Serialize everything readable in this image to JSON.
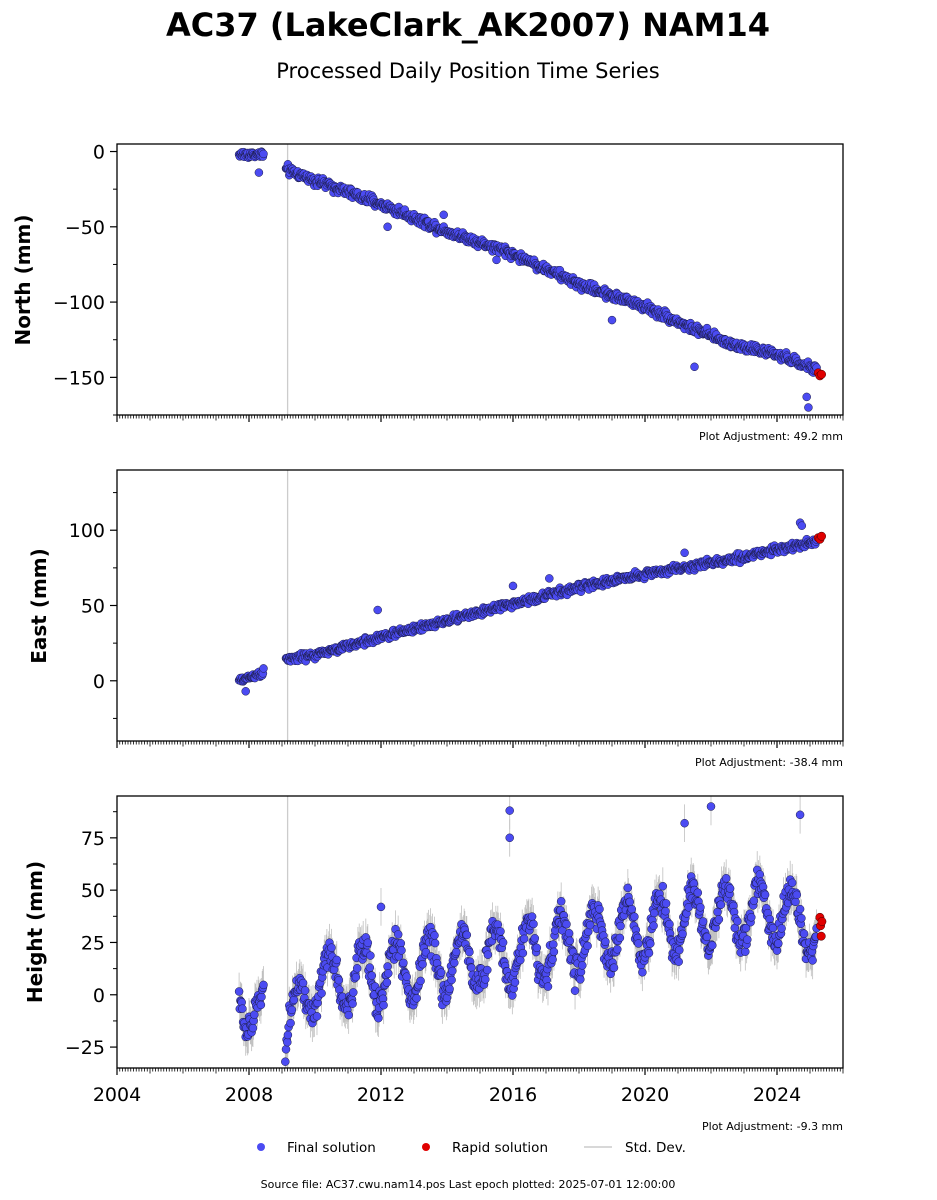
{
  "title": "AC37 (LakeClark_AK2007) NAM14",
  "subtitle": "Processed Daily Position Time Series",
  "legend": {
    "final": "Final solution",
    "rapid": "Rapid solution",
    "std": "Std. Dev."
  },
  "footer": "Source file: AC37.cwu.nam14.pos  Last epoch plotted: 2025-07-01 12:00:00",
  "colors": {
    "final": "#4b4bf2",
    "rapid": "#e00000",
    "std": "#bfbfbf",
    "event_line": "#cccccc"
  },
  "chart_data": [
    {
      "type": "scatter",
      "ylabel": "North (mm)",
      "adjustment": "Plot Adjustment: 49.2 mm",
      "xlim": [
        2004.0,
        2026.0
      ],
      "ylim": [
        -175,
        5
      ],
      "yticks": [
        0,
        -50,
        -100,
        -150
      ],
      "ytick_labels": [
        "0",
        "−50",
        "−100",
        "−150"
      ],
      "event_lines": [
        2009.17
      ],
      "final_trend": [
        [
          2007.7,
          -2
        ],
        [
          2008.5,
          -2
        ],
        [
          2009.0,
          -11
        ],
        [
          2010.0,
          -19
        ],
        [
          2012.0,
          -35
        ],
        [
          2014.0,
          -53
        ],
        [
          2016.0,
          -68
        ],
        [
          2018.0,
          -88
        ],
        [
          2020.0,
          -103
        ],
        [
          2021.5,
          -118
        ],
        [
          2022.5,
          -127
        ],
        [
          2024.0,
          -135
        ],
        [
          2025.2,
          -145
        ]
      ],
      "final_noise": 3,
      "outliers": [
        [
          2008.3,
          -14
        ],
        [
          2012.2,
          -50
        ],
        [
          2015.5,
          -72
        ],
        [
          2019.0,
          -112
        ],
        [
          2021.5,
          -143
        ],
        [
          2024.9,
          -163
        ],
        [
          2024.95,
          -170
        ],
        [
          2013.9,
          -42
        ]
      ],
      "rapid": [
        [
          2025.25,
          -147
        ],
        [
          2025.3,
          -149
        ],
        [
          2025.35,
          -148
        ]
      ]
    },
    {
      "type": "scatter",
      "ylabel": "East (mm)",
      "adjustment": "Plot Adjustment: -38.4 mm",
      "xlim": [
        2004.0,
        2026.0
      ],
      "ylim": [
        -40,
        140
      ],
      "yticks": [
        0,
        50,
        100
      ],
      "ytick_labels": [
        "0",
        "50",
        "100"
      ],
      "event_lines": [
        2009.17
      ],
      "final_trend": [
        [
          2007.7,
          0
        ],
        [
          2008.5,
          6
        ],
        [
          2009.1,
          14
        ],
        [
          2010.0,
          17
        ],
        [
          2012.0,
          29
        ],
        [
          2014.0,
          40
        ],
        [
          2016.0,
          51
        ],
        [
          2018.0,
          62
        ],
        [
          2020.0,
          71
        ],
        [
          2022.0,
          78
        ],
        [
          2024.0,
          87
        ],
        [
          2025.2,
          93
        ]
      ],
      "final_noise": 2.5,
      "outliers": [
        [
          2007.9,
          -7
        ],
        [
          2011.9,
          47
        ],
        [
          2016.0,
          63
        ],
        [
          2017.1,
          68
        ],
        [
          2024.7,
          105
        ],
        [
          2024.75,
          103
        ],
        [
          2021.2,
          85
        ]
      ],
      "rapid": [
        [
          2025.25,
          95
        ],
        [
          2025.3,
          94
        ],
        [
          2025.35,
          96
        ]
      ]
    },
    {
      "type": "scatter",
      "ylabel": "Height (mm)",
      "adjustment": "Plot Adjustment: -9.3 mm",
      "xlim": [
        2004.0,
        2026.0
      ],
      "ylim": [
        -35,
        95
      ],
      "yticks": [
        -25,
        0,
        25,
        50,
        75
      ],
      "ytick_labels": [
        "−25",
        "0",
        "25",
        "50",
        "75"
      ],
      "xticks": [
        2004,
        2008,
        2012,
        2016,
        2020,
        2024
      ],
      "xtick_labels": [
        "2004",
        "2008",
        "2012",
        "2016",
        "2020",
        "2024"
      ],
      "event_lines": [
        2009.17
      ],
      "final_trend": [
        [
          2007.7,
          0
        ],
        [
          2008.5,
          -12
        ],
        [
          2009.0,
          -20
        ],
        [
          2010.0,
          5
        ],
        [
          2012.0,
          10
        ],
        [
          2014.0,
          15
        ],
        [
          2016.0,
          20
        ],
        [
          2018.0,
          25
        ],
        [
          2020.0,
          32
        ],
        [
          2022.0,
          38
        ],
        [
          2024.0,
          40
        ],
        [
          2025.2,
          30
        ]
      ],
      "seasonal_amplitude": 14,
      "final_noise": 7,
      "outliers": [
        [
          2015.9,
          88
        ],
        [
          2015.9,
          75
        ],
        [
          2022.0,
          90
        ],
        [
          2024.7,
          86
        ],
        [
          2012.0,
          42
        ],
        [
          2009.1,
          -32
        ],
        [
          2021.2,
          82
        ]
      ],
      "rapid": [
        [
          2025.3,
          37
        ],
        [
          2025.32,
          33
        ],
        [
          2025.34,
          28
        ],
        [
          2025.36,
          35
        ]
      ]
    }
  ]
}
